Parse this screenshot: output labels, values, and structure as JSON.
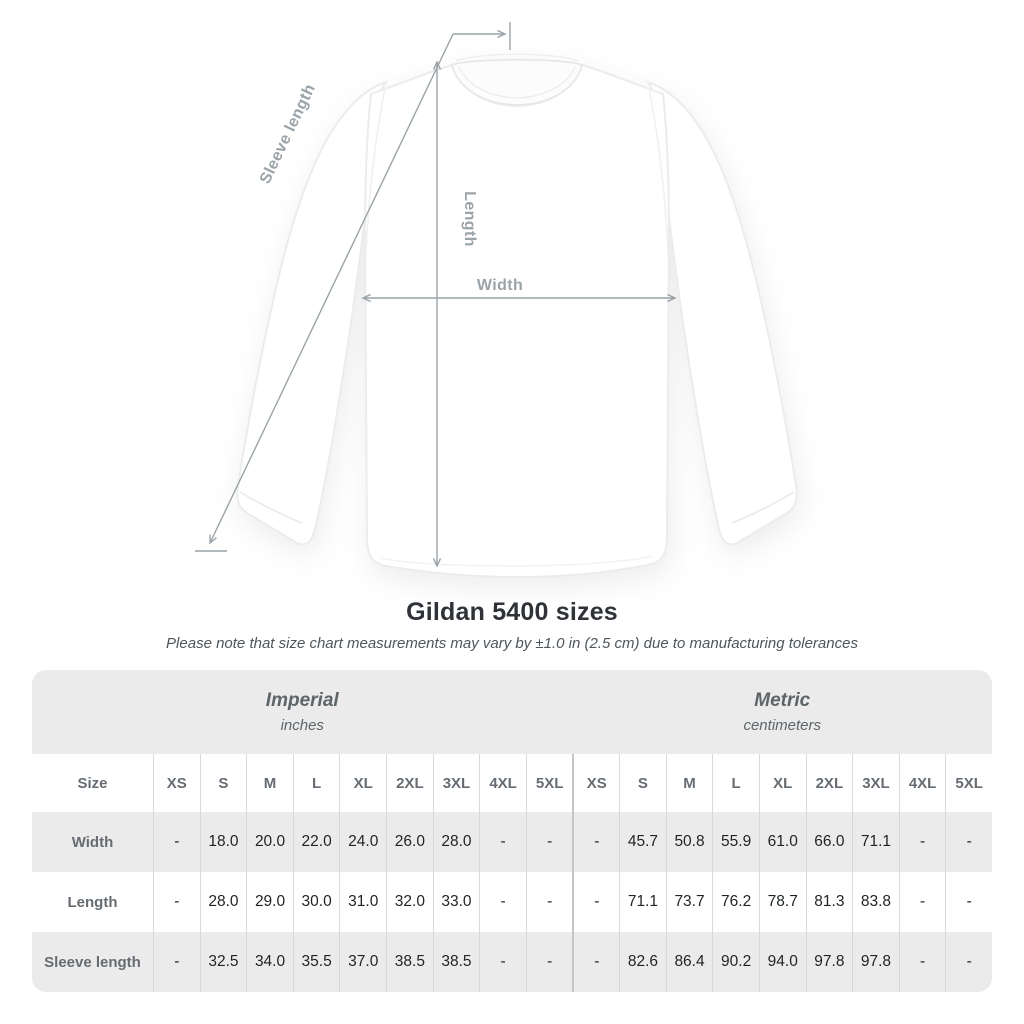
{
  "title": "Gildan 5400 sizes",
  "note": "Please note that size chart measurements may vary by ±1.0 in (2.5 cm) due to manufacturing tolerances",
  "diagram": {
    "labels": {
      "sleeve_length": "Sleeve length",
      "length": "Length",
      "width": "Width"
    }
  },
  "table": {
    "groups": [
      {
        "label": "Imperial",
        "sublabel": "inches"
      },
      {
        "label": "Metric",
        "sublabel": "centimeters"
      }
    ],
    "size_header": "Size",
    "sizes": [
      "XS",
      "S",
      "M",
      "L",
      "XL",
      "2XL",
      "3XL",
      "4XL",
      "5XL"
    ],
    "rows": [
      {
        "label": "Width",
        "imperial": [
          "-",
          "18.0",
          "20.0",
          "22.0",
          "24.0",
          "26.0",
          "28.0",
          "-",
          "-"
        ],
        "metric": [
          "-",
          "45.7",
          "50.8",
          "55.9",
          "61.0",
          "66.0",
          "71.1",
          "-",
          "-"
        ]
      },
      {
        "label": "Length",
        "imperial": [
          "-",
          "28.0",
          "29.0",
          "30.0",
          "31.0",
          "32.0",
          "33.0",
          "-",
          "-"
        ],
        "metric": [
          "-",
          "71.1",
          "73.7",
          "76.2",
          "78.7",
          "81.3",
          "83.8",
          "-",
          "-"
        ]
      },
      {
        "label": "Sleeve length",
        "imperial": [
          "-",
          "32.5",
          "34.0",
          "35.5",
          "37.0",
          "38.5",
          "38.5",
          "-",
          "-"
        ],
        "metric": [
          "-",
          "82.6",
          "86.4",
          "90.2",
          "94.0",
          "97.8",
          "97.8",
          "-",
          "-"
        ]
      }
    ]
  },
  "colors": {
    "diagram-gray": "#9aa3a8",
    "title-text": "#2f3337",
    "note-text": "#4e565c",
    "band-text": "#5d6569",
    "header-text": "#666c71",
    "value-text": "#1f2326",
    "table-bg": "#ebebeb",
    "separator": "#d9d9d9",
    "divider": "#c6c6c6"
  }
}
